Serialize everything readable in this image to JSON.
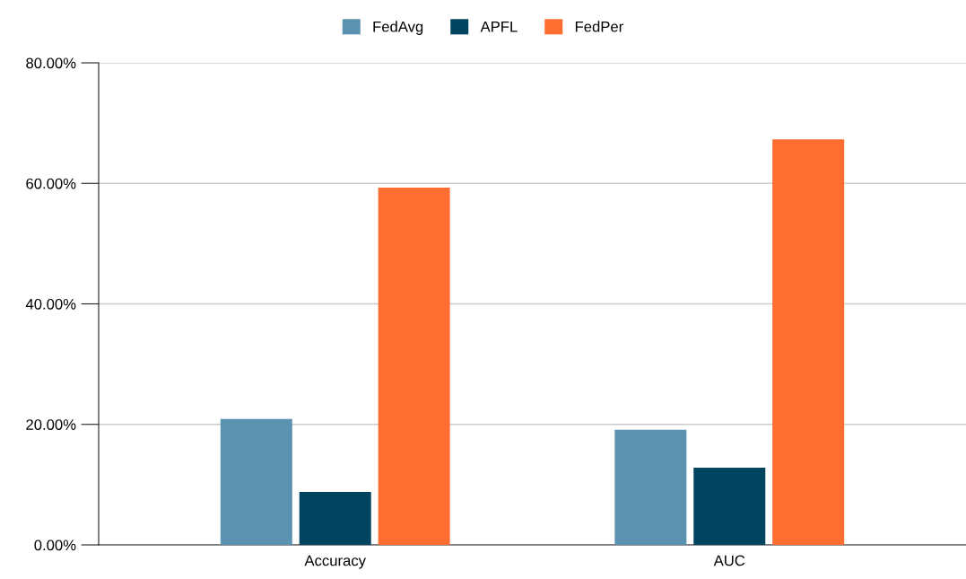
{
  "chart_data": {
    "type": "bar",
    "categories": [
      "Accuracy",
      "AUC"
    ],
    "series": [
      {
        "name": "FedAvg",
        "color": "#5b92b0",
        "values": [
          20.9,
          19.1
        ]
      },
      {
        "name": "APFL",
        "color": "#01445f",
        "values": [
          8.8,
          12.8
        ]
      },
      {
        "name": "FedPer",
        "color": "#ff6d31",
        "values": [
          59.3,
          67.3
        ]
      }
    ],
    "ylim": [
      0,
      80
    ],
    "yticks": [
      {
        "value": 0,
        "label": "0.00%"
      },
      {
        "value": 20,
        "label": "20.00%"
      },
      {
        "value": 40,
        "label": "40.00%"
      },
      {
        "value": 60,
        "label": "60.00%"
      },
      {
        "value": 80,
        "label": "80.00%"
      }
    ],
    "grid": "y",
    "legend": "top"
  }
}
